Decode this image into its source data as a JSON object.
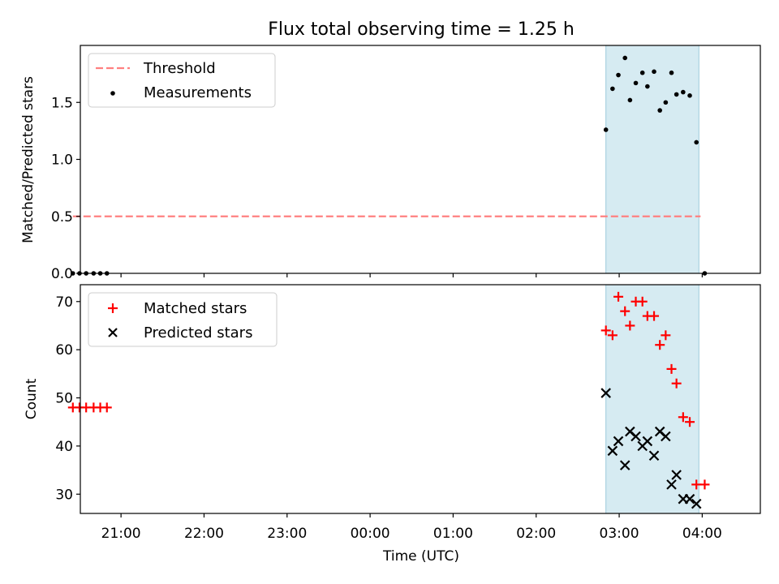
{
  "figure": {
    "title": "Flux total observing time = 1.25 h",
    "xlabel": "Time (UTC)",
    "x_ticks": [
      {
        "v": 21.0,
        "label": "21:00"
      },
      {
        "v": 22.0,
        "label": "22:00"
      },
      {
        "v": 23.0,
        "label": "23:00"
      },
      {
        "v": 24.0,
        "label": "00:00"
      },
      {
        "v": 25.0,
        "label": "01:00"
      },
      {
        "v": 26.0,
        "label": "02:00"
      },
      {
        "v": 27.0,
        "label": "03:00"
      },
      {
        "v": 28.0,
        "label": "04:00"
      }
    ],
    "xlim": [
      20.51,
      28.7
    ],
    "shaded_span": [
      26.84,
      27.96
    ],
    "span_color": "#add8e6",
    "colors": {
      "threshold": "#ff8080",
      "measurements": "#000000",
      "matched": "#ff0000",
      "predicted": "#000000"
    }
  },
  "chart_data": [
    {
      "type": "scatter",
      "ylabel": "Matched/Predicted stars",
      "ylim": [
        0,
        2.0
      ],
      "y_ticks": [
        {
          "v": 0.0,
          "label": "0.0"
        },
        {
          "v": 0.5,
          "label": "0.5"
        },
        {
          "v": 1.0,
          "label": "1.0"
        },
        {
          "v": 1.5,
          "label": "1.5"
        }
      ],
      "legend_position": "top-left",
      "threshold": {
        "name": "Threshold",
        "value": 0.5,
        "x_range": [
          20.42,
          27.98
        ],
        "style": "dashed"
      },
      "series": [
        {
          "name": "Measurements",
          "marker": "dot",
          "points": [
            [
              20.42,
              0
            ],
            [
              20.5,
              0
            ],
            [
              20.58,
              0
            ],
            [
              20.67,
              0
            ],
            [
              20.75,
              0
            ],
            [
              20.83,
              0
            ],
            [
              26.84,
              1.26
            ],
            [
              26.92,
              1.62
            ],
            [
              26.99,
              1.74
            ],
            [
              27.07,
              1.89
            ],
            [
              27.13,
              1.52
            ],
            [
              27.2,
              1.67
            ],
            [
              27.28,
              1.76
            ],
            [
              27.34,
              1.64
            ],
            [
              27.42,
              1.77
            ],
            [
              27.49,
              1.43
            ],
            [
              27.56,
              1.5
            ],
            [
              27.63,
              1.76
            ],
            [
              27.69,
              1.57
            ],
            [
              27.77,
              1.59
            ],
            [
              27.85,
              1.56
            ],
            [
              27.93,
              1.15
            ],
            [
              28.03,
              0
            ]
          ]
        }
      ]
    },
    {
      "type": "scatter",
      "ylabel": "Count",
      "ylim": [
        26,
        73.5
      ],
      "y_ticks": [
        {
          "v": 30,
          "label": "30"
        },
        {
          "v": 40,
          "label": "40"
        },
        {
          "v": 50,
          "label": "50"
        },
        {
          "v": 60,
          "label": "60"
        },
        {
          "v": 70,
          "label": "70"
        }
      ],
      "legend_position": "top-left",
      "series": [
        {
          "name": "Matched stars",
          "marker": "plus",
          "points": [
            [
              20.42,
              48
            ],
            [
              20.5,
              48
            ],
            [
              20.58,
              48
            ],
            [
              20.67,
              48
            ],
            [
              20.75,
              48
            ],
            [
              20.83,
              48
            ],
            [
              26.84,
              64
            ],
            [
              26.92,
              63
            ],
            [
              26.99,
              71
            ],
            [
              27.07,
              68
            ],
            [
              27.13,
              65
            ],
            [
              27.2,
              70
            ],
            [
              27.28,
              70
            ],
            [
              27.34,
              67
            ],
            [
              27.42,
              67
            ],
            [
              27.49,
              61
            ],
            [
              27.56,
              63
            ],
            [
              27.63,
              56
            ],
            [
              27.69,
              53
            ],
            [
              27.77,
              46
            ],
            [
              27.85,
              45
            ],
            [
              27.93,
              32
            ],
            [
              28.03,
              32
            ]
          ]
        },
        {
          "name": "Predicted stars",
          "marker": "x",
          "points": [
            [
              26.84,
              51
            ],
            [
              26.92,
              39
            ],
            [
              26.99,
              41
            ],
            [
              27.07,
              36
            ],
            [
              27.13,
              43
            ],
            [
              27.2,
              42
            ],
            [
              27.28,
              40
            ],
            [
              27.34,
              41
            ],
            [
              27.42,
              38
            ],
            [
              27.49,
              43
            ],
            [
              27.56,
              42
            ],
            [
              27.63,
              32
            ],
            [
              27.69,
              34
            ],
            [
              27.77,
              29
            ],
            [
              27.85,
              29
            ],
            [
              27.93,
              28
            ]
          ]
        }
      ]
    }
  ]
}
